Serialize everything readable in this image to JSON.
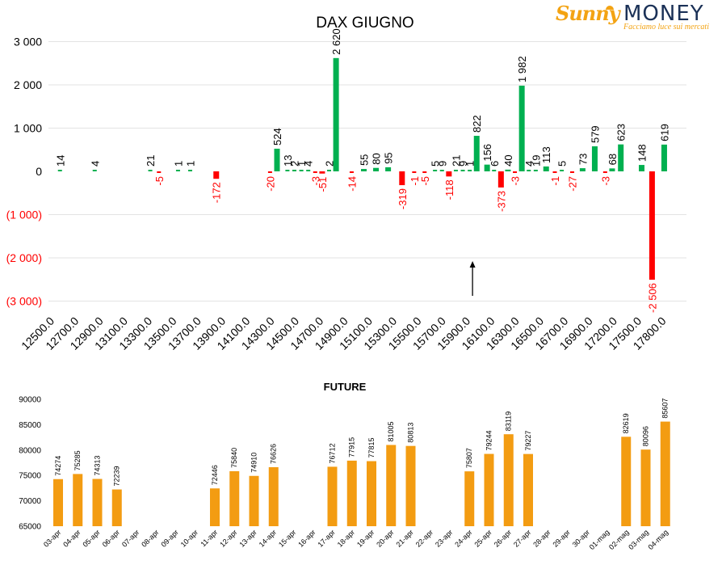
{
  "brand": {
    "name_part1": "Sunny",
    "name_part2": "MONEY",
    "tagline": "Facciamo luce sui mercati"
  },
  "colors": {
    "positive": "#00b050",
    "negative": "#ff0000",
    "future_bar": "#f39c12",
    "axis_text": "#000000",
    "negative_label": "#ff0000"
  },
  "chart_data": [
    {
      "type": "bar",
      "title": "DAX GIUGNO",
      "ytick_labels": [
        "3 000",
        "2 000",
        "1 000",
        "0",
        "(1 000)",
        "(2 000)",
        "(3 000)"
      ],
      "ylim": [
        -3000,
        3000
      ],
      "grid": true,
      "categories": [
        "12500.0",
        "12700.0",
        "12900.0",
        "13100.0",
        "13300.0",
        "13500.0",
        "13700.0",
        "13900.0",
        "14100.0",
        "14300.0",
        "14500.0",
        "14700.0",
        "14900.0",
        "15100.0",
        "15300.0",
        "15500.0",
        "15700.0",
        "15900.0",
        "16100.0",
        "16300.0",
        "16500.0",
        "16700.0",
        "16900.0",
        "17200.0",
        "17500.0",
        "17800.0"
      ],
      "series": [
        {
          "values": [
            {
              "slot": 1.5,
              "value": 14,
              "label": "14"
            },
            {
              "slot": 3.5,
              "value": 4,
              "label": "4"
            },
            {
              "slot": 6.7,
              "value": 21,
              "label": "21"
            },
            {
              "slot": 7.2,
              "value": -5,
              "label": "-5"
            },
            {
              "slot": 8.3,
              "value": 1,
              "label": "1"
            },
            {
              "slot": 9.0,
              "value": 1,
              "label": "1"
            },
            {
              "slot": 10.5,
              "value": -172,
              "label": "-172"
            },
            {
              "slot": 13.6,
              "value": -20,
              "label": "-20"
            },
            {
              "slot": 14.0,
              "value": 524,
              "label": "524"
            },
            {
              "slot": 14.6,
              "value": 13,
              "label": "13"
            },
            {
              "slot": 15.0,
              "value": 2,
              "label": "2"
            },
            {
              "slot": 15.4,
              "value": 1,
              "label": "1"
            },
            {
              "slot": 15.8,
              "value": 4,
              "label": "4"
            },
            {
              "slot": 16.2,
              "value": -3,
              "label": "-3"
            },
            {
              "slot": 16.6,
              "value": -51,
              "label": "-51"
            },
            {
              "slot": 17.0,
              "value": 2,
              "label": "2"
            },
            {
              "slot": 17.4,
              "value": 2620,
              "label": "2 620"
            },
            {
              "slot": 18.3,
              "value": -14,
              "label": "-14"
            },
            {
              "slot": 19.0,
              "value": 55,
              "label": "55"
            },
            {
              "slot": 19.7,
              "value": 80,
              "label": "80"
            },
            {
              "slot": 20.4,
              "value": 95,
              "label": "95"
            },
            {
              "slot": 21.2,
              "value": -319,
              "label": "-319"
            },
            {
              "slot": 21.9,
              "value": -1,
              "label": "-1"
            },
            {
              "slot": 22.5,
              "value": -5,
              "label": "-5"
            },
            {
              "slot": 23.1,
              "value": 5,
              "label": "5"
            },
            {
              "slot": 23.5,
              "value": 9,
              "label": "9"
            },
            {
              "slot": 23.9,
              "value": -118,
              "label": "-118"
            },
            {
              "slot": 24.3,
              "value": 21,
              "label": "21"
            },
            {
              "slot": 24.7,
              "value": 9,
              "label": "9"
            },
            {
              "slot": 25.1,
              "value": 1,
              "label": "1"
            },
            {
              "slot": 25.5,
              "value": 822,
              "label": "822"
            },
            {
              "slot": 26.1,
              "value": 156,
              "label": "156"
            },
            {
              "slot": 26.5,
              "value": 6,
              "label": "6"
            },
            {
              "slot": 26.9,
              "value": -373,
              "label": "-373"
            },
            {
              "slot": 27.3,
              "value": 40,
              "label": "40"
            },
            {
              "slot": 27.7,
              "value": -3,
              "label": "-3"
            },
            {
              "slot": 28.1,
              "value": 1982,
              "label": "1 982"
            },
            {
              "slot": 28.5,
              "value": 4,
              "label": "4"
            },
            {
              "slot": 28.9,
              "value": 19,
              "label": "19"
            },
            {
              "slot": 29.5,
              "value": 113,
              "label": "113"
            },
            {
              "slot": 30.0,
              "value": -1,
              "label": "-1"
            },
            {
              "slot": 30.4,
              "value": 5,
              "label": "5"
            },
            {
              "slot": 31.0,
              "value": -27,
              "label": "-27"
            },
            {
              "slot": 31.6,
              "value": 73,
              "label": "73"
            },
            {
              "slot": 32.3,
              "value": 579,
              "label": "579"
            },
            {
              "slot": 32.9,
              "value": -3,
              "label": "-3"
            },
            {
              "slot": 33.3,
              "value": 68,
              "label": "68"
            },
            {
              "slot": 33.8,
              "value": 623,
              "label": "623"
            },
            {
              "slot": 35.0,
              "value": 148,
              "label": "148"
            },
            {
              "slot": 35.6,
              "value": -2506,
              "label": "-2 506"
            },
            {
              "slot": 36.3,
              "value": 619,
              "label": "619"
            }
          ]
        }
      ],
      "annotations": [
        {
          "type": "arrow",
          "direction": "up",
          "category": "15900.0"
        }
      ]
    },
    {
      "type": "bar",
      "title": "FUTURE",
      "ylim": [
        65000,
        90000
      ],
      "ytick_labels": [
        "90000",
        "85000",
        "80000",
        "75000",
        "70000",
        "65000"
      ],
      "grid": false,
      "categories": [
        "03-apr",
        "04-apr",
        "05-apr",
        "06-apr",
        "07-apr",
        "08-apr",
        "09-apr",
        "10-apr",
        "11-apr",
        "12-apr",
        "13-apr",
        "14-apr",
        "15-apr",
        "16-apr",
        "17-apr",
        "18-apr",
        "19-apr",
        "20-apr",
        "21-apr",
        "22-apr",
        "23-apr",
        "24-apr",
        "25-apr",
        "26-apr",
        "27-apr",
        "28-apr",
        "29-apr",
        "30-apr",
        "01-mag",
        "02-mag",
        "03-mag",
        "04-mag"
      ],
      "values": [
        74274,
        75285,
        74313,
        72239,
        null,
        null,
        null,
        null,
        72446,
        75840,
        74910,
        76626,
        null,
        null,
        76712,
        77915,
        77815,
        81005,
        80813,
        null,
        null,
        75807,
        79244,
        83119,
        79227,
        null,
        null,
        null,
        null,
        82619,
        80096,
        85607
      ],
      "data_labels": [
        "74274",
        "75285",
        "74313",
        "72239",
        "",
        "",
        "",
        "",
        "72446",
        "75840",
        "74910",
        "76626",
        "",
        "",
        "76712",
        "77915",
        "77815",
        "81005",
        "80813",
        "",
        "",
        "75807",
        "79244",
        "83119",
        "79227",
        "",
        "",
        "",
        "",
        "82619",
        "80096",
        "85607"
      ]
    }
  ]
}
